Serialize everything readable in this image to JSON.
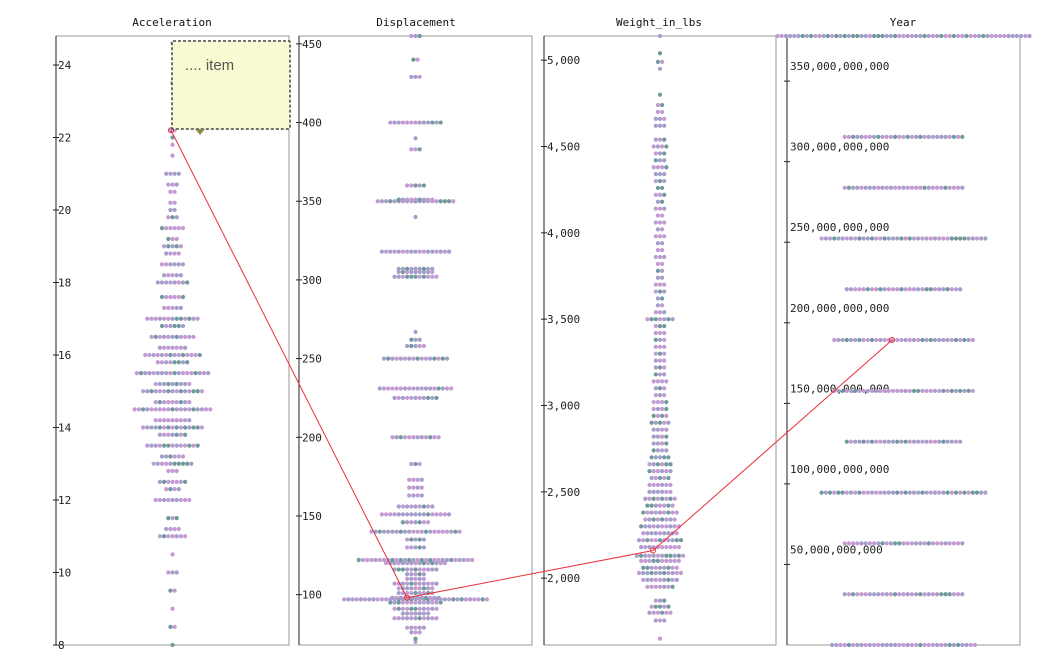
{
  "chart_data": {
    "type": "scatter",
    "subtype": "beeswarm parallel coordinates",
    "colors": {
      "series_a": "#c39bd3",
      "series_b": "#a39fc9",
      "series_c": "#6f9a9a",
      "highlight": "#e8303a",
      "panel_border": "#999999",
      "tooltip_bg": "#fafad2",
      "tooltip_border": "#444444",
      "tooltip_pointer": "#8b8b4a"
    },
    "axes": [
      {
        "key": "acceleration",
        "title": "Acceleration",
        "domain": [
          8,
          24.8
        ],
        "ticks": [
          8,
          10,
          12,
          14,
          16,
          18,
          20,
          22,
          24
        ],
        "tick_labels": [
          "8",
          "10",
          "12",
          "14",
          "16",
          "18",
          "20",
          "22",
          "24"
        ],
        "value_groups": [
          [
            8,
            1
          ],
          [
            8.5,
            2
          ],
          [
            9,
            1
          ],
          [
            9.5,
            2
          ],
          [
            10,
            3
          ],
          [
            10.5,
            1
          ],
          [
            11,
            7
          ],
          [
            11.2,
            4
          ],
          [
            11.5,
            3
          ],
          [
            12,
            9
          ],
          [
            12.3,
            4
          ],
          [
            12.5,
            7
          ],
          [
            12.8,
            3
          ],
          [
            13,
            10
          ],
          [
            13.2,
            6
          ],
          [
            13.5,
            13
          ],
          [
            13.8,
            7
          ],
          [
            14,
            15
          ],
          [
            14.2,
            9
          ],
          [
            14.5,
            19
          ],
          [
            14.7,
            9
          ],
          [
            15,
            15
          ],
          [
            15.2,
            9
          ],
          [
            15.5,
            18
          ],
          [
            15.8,
            8
          ],
          [
            16,
            14
          ],
          [
            16.2,
            7
          ],
          [
            16.5,
            11
          ],
          [
            16.8,
            6
          ],
          [
            17,
            13
          ],
          [
            17.3,
            5
          ],
          [
            17.6,
            6
          ],
          [
            18,
            8
          ],
          [
            18.2,
            5
          ],
          [
            18.5,
            6
          ],
          [
            18.8,
            4
          ],
          [
            19,
            5
          ],
          [
            19.2,
            3
          ],
          [
            19.5,
            6
          ],
          [
            19.8,
            3
          ],
          [
            20,
            2
          ],
          [
            20.2,
            2
          ],
          [
            20.5,
            2
          ],
          [
            20.7,
            3
          ],
          [
            21,
            4
          ],
          [
            21.5,
            1
          ],
          [
            21.8,
            1
          ],
          [
            22,
            1
          ],
          [
            22.2,
            2
          ],
          [
            23.5,
            1
          ],
          [
            24.6,
            1
          ]
        ]
      },
      {
        "key": "displacement",
        "title": "Displacement",
        "domain": [
          68,
          455
        ],
        "ticks": [
          100,
          150,
          200,
          250,
          300,
          350,
          400,
          450
        ],
        "tick_labels": [
          "100",
          "150",
          "200",
          "250",
          "300",
          "350",
          "400",
          "450"
        ],
        "value_groups": [
          [
            70,
            1
          ],
          [
            72,
            1
          ],
          [
            76,
            3
          ],
          [
            79,
            5
          ],
          [
            85,
            11
          ],
          [
            88,
            7
          ],
          [
            91,
            11
          ],
          [
            95,
            13
          ],
          [
            97,
            35
          ],
          [
            98,
            12
          ],
          [
            101,
            9
          ],
          [
            104,
            9
          ],
          [
            107,
            11
          ],
          [
            110,
            5
          ],
          [
            113,
            5
          ],
          [
            116,
            11
          ],
          [
            120,
            15
          ],
          [
            122,
            28
          ],
          [
            130,
            5
          ],
          [
            135,
            5
          ],
          [
            140,
            22
          ],
          [
            146,
            7
          ],
          [
            151,
            17
          ],
          [
            156,
            9
          ],
          [
            163,
            4
          ],
          [
            168,
            4
          ],
          [
            173,
            4
          ],
          [
            183,
            3
          ],
          [
            200,
            12
          ],
          [
            225,
            11
          ],
          [
            231,
            18
          ],
          [
            250,
            16
          ],
          [
            258,
            5
          ],
          [
            262,
            3
          ],
          [
            267,
            1
          ],
          [
            302,
            11
          ],
          [
            305,
            9
          ],
          [
            307,
            9
          ],
          [
            318,
            17
          ],
          [
            340,
            1
          ],
          [
            350,
            19
          ],
          [
            351,
            9
          ],
          [
            360,
            5
          ],
          [
            383,
            3
          ],
          [
            390,
            1
          ],
          [
            400,
            13
          ],
          [
            429,
            3
          ],
          [
            440,
            2
          ],
          [
            455,
            3
          ]
        ]
      },
      {
        "key": "weight",
        "title": "Weight_in_lbs",
        "domain": [
          1613,
          5140
        ],
        "ticks": [
          2000,
          2500,
          3000,
          3500,
          4000,
          4500,
          5000
        ],
        "tick_labels": [
          "2,000",
          "2,500",
          "3,000",
          "3,500",
          "4,000",
          "4,500",
          "5,000"
        ],
        "value_groups": [
          [
            1650,
            1
          ],
          [
            1755,
            3
          ],
          [
            1800,
            6
          ],
          [
            1835,
            5
          ],
          [
            1870,
            3
          ],
          [
            1950,
            7
          ],
          [
            1990,
            9
          ],
          [
            2030,
            11
          ],
          [
            2060,
            9
          ],
          [
            2100,
            10
          ],
          [
            2130,
            12
          ],
          [
            2180,
            10
          ],
          [
            2220,
            11
          ],
          [
            2260,
            9
          ],
          [
            2300,
            10
          ],
          [
            2340,
            8
          ],
          [
            2380,
            9
          ],
          [
            2420,
            7
          ],
          [
            2460,
            8
          ],
          [
            2500,
            6
          ],
          [
            2540,
            6
          ],
          [
            2580,
            5
          ],
          [
            2620,
            6
          ],
          [
            2660,
            6
          ],
          [
            2700,
            5
          ],
          [
            2740,
            4
          ],
          [
            2780,
            4
          ],
          [
            2820,
            4
          ],
          [
            2860,
            4
          ],
          [
            2900,
            5
          ],
          [
            2940,
            4
          ],
          [
            2980,
            4
          ],
          [
            3020,
            4
          ],
          [
            3060,
            3
          ],
          [
            3100,
            3
          ],
          [
            3140,
            4
          ],
          [
            3180,
            3
          ],
          [
            3220,
            3
          ],
          [
            3260,
            3
          ],
          [
            3300,
            3
          ],
          [
            3340,
            3
          ],
          [
            3380,
            3
          ],
          [
            3420,
            3
          ],
          [
            3460,
            3
          ],
          [
            3500,
            7
          ],
          [
            3540,
            3
          ],
          [
            3580,
            2
          ],
          [
            3620,
            2
          ],
          [
            3660,
            3
          ],
          [
            3700,
            3
          ],
          [
            3740,
            2
          ],
          [
            3780,
            2
          ],
          [
            3820,
            2
          ],
          [
            3860,
            3
          ],
          [
            3900,
            2
          ],
          [
            3940,
            2
          ],
          [
            3980,
            3
          ],
          [
            4020,
            2
          ],
          [
            4060,
            3
          ],
          [
            4100,
            2
          ],
          [
            4140,
            3
          ],
          [
            4180,
            2
          ],
          [
            4220,
            3
          ],
          [
            4260,
            2
          ],
          [
            4300,
            3
          ],
          [
            4340,
            3
          ],
          [
            4380,
            4
          ],
          [
            4420,
            3
          ],
          [
            4460,
            3
          ],
          [
            4500,
            4
          ],
          [
            4540,
            3
          ],
          [
            4620,
            3
          ],
          [
            4660,
            3
          ],
          [
            4700,
            2
          ],
          [
            4740,
            2
          ],
          [
            4800,
            1
          ],
          [
            4950,
            1
          ],
          [
            4990,
            2
          ],
          [
            5040,
            1
          ],
          [
            5140,
            1
          ]
        ]
      },
      {
        "key": "year",
        "title": "Year",
        "domain": [
          0,
          378000000000
        ],
        "ticks": [
          50000000000,
          100000000000,
          150000000000,
          200000000000,
          250000000000,
          300000000000,
          350000000000
        ],
        "tick_labels": [
          "50,000,000,000",
          "100,000,000,000",
          "150,000,000,000",
          "200,000,000,000",
          "250,000,000,000",
          "300,000,000,000",
          "350,000,000,000"
        ],
        "value_groups": [
          [
            0,
            35
          ],
          [
            31500000000,
            29
          ],
          [
            63100000000,
            29
          ],
          [
            94600000000,
            40
          ],
          [
            126200000000,
            28
          ],
          [
            157700000000,
            34
          ],
          [
            189300000000,
            34
          ],
          [
            220800000000,
            28
          ],
          [
            252300000000,
            40
          ],
          [
            283800000000,
            29
          ],
          [
            315400000000,
            29
          ],
          [
            378000000000,
            61
          ]
        ]
      }
    ],
    "highlighted_item": {
      "acceleration": 22.2,
      "displacement": 98,
      "weight": 2160,
      "year": 189300000000
    },
    "tooltip": {
      "label": ".... item"
    }
  }
}
